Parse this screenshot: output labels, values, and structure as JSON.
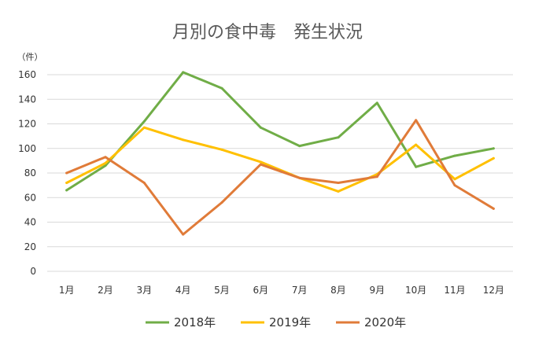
{
  "chart_data": {
    "type": "line",
    "title": "月別の食中毒　発生状況",
    "y_unit_label": "（件）",
    "categories": [
      "1月",
      "2月",
      "3月",
      "4月",
      "5月",
      "6月",
      "7月",
      "8月",
      "9月",
      "10月",
      "11月",
      "12月"
    ],
    "ylim": [
      0,
      160
    ],
    "yticks": [
      0,
      20,
      40,
      60,
      80,
      100,
      120,
      140,
      160
    ],
    "grid": true,
    "legend_position": "bottom",
    "series": [
      {
        "name": "2018年",
        "color": "#70ad47",
        "values": [
          66,
          86,
          122,
          162,
          149,
          117,
          102,
          109,
          137,
          85,
          94,
          100
        ]
      },
      {
        "name": "2019年",
        "color": "#ffc000",
        "values": [
          72,
          88,
          117,
          107,
          99,
          89,
          76,
          65,
          79,
          103,
          75,
          92
        ]
      },
      {
        "name": "2020年",
        "color": "#e07b39",
        "values": [
          80,
          93,
          72,
          30,
          56,
          87,
          76,
          72,
          77,
          123,
          70,
          51
        ]
      }
    ]
  }
}
